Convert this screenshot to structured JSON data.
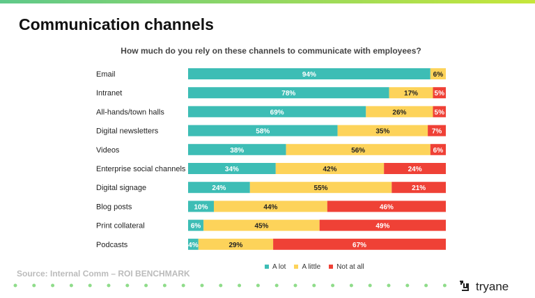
{
  "title": "Communication channels",
  "source": "Source: Internal Comm – ROI BENCHMARK",
  "brand": "tryane",
  "chart_data": {
    "type": "bar",
    "orientation": "horizontal",
    "stacked": true,
    "title": "How much do you rely on these channels to communicate with employees?",
    "categories": [
      "Email",
      "Intranet",
      "All-hands/town halls",
      "Digital newsletters",
      "Videos",
      "Enterprise social channels",
      "Digital signage",
      "Blog posts",
      "Print collateral",
      "Podcasts"
    ],
    "series": [
      {
        "name": "A lot",
        "color": "#3dbdb5",
        "values": [
          94,
          78,
          69,
          58,
          38,
          34,
          24,
          10,
          6,
          4
        ]
      },
      {
        "name": "A little",
        "color": "#fdd35a",
        "values": [
          6,
          17,
          26,
          35,
          56,
          42,
          55,
          44,
          45,
          29
        ]
      },
      {
        "name": "Not at all",
        "color": "#ef4136",
        "values": [
          0,
          5,
          5,
          7,
          6,
          24,
          21,
          46,
          49,
          67
        ]
      }
    ],
    "xlim": [
      0,
      100
    ],
    "legend": "bottom"
  }
}
